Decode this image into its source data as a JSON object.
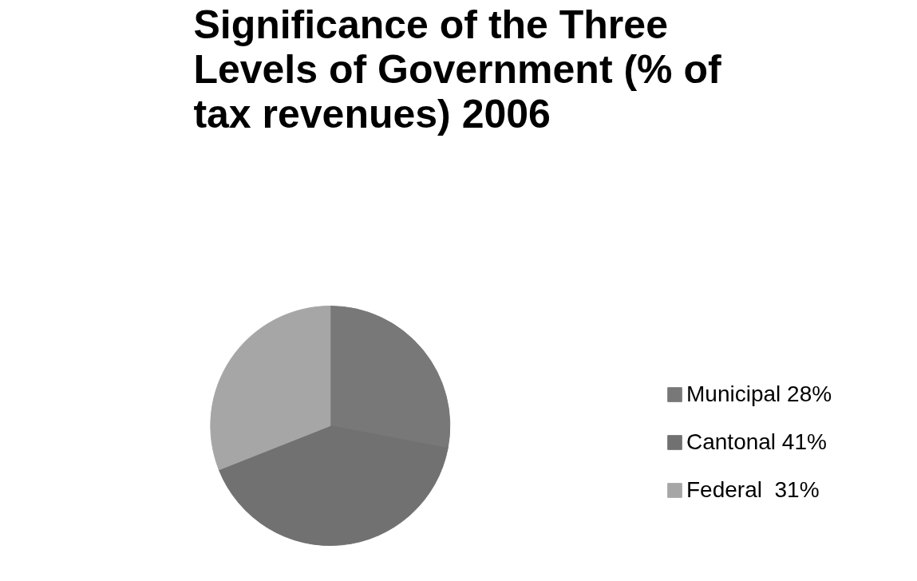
{
  "chart_data": {
    "type": "pie",
    "title": "Significance of the Three Levels of Government (% of tax revenues) 2006",
    "categories": [
      "Municipal 28%",
      "Cantonal 41%",
      "Federal  31%"
    ],
    "values": [
      28,
      41,
      31
    ],
    "colors": [
      "#787878",
      "#717171",
      "#a6a6a6"
    ],
    "legend": "right"
  }
}
